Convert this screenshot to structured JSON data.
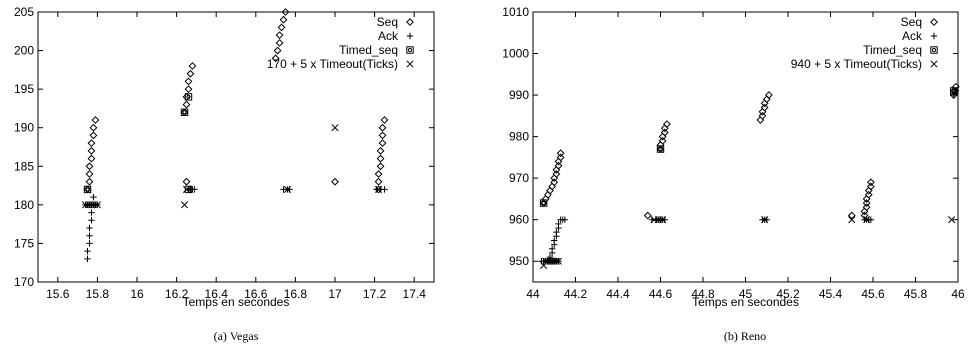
{
  "chart_data": [
    {
      "type": "scatter",
      "caption": "(a) Vegas",
      "xlabel": "Temps en secondes",
      "ylabel": "",
      "xlim": [
        15.5,
        17.5
      ],
      "ylim": [
        170,
        205
      ],
      "xticks": [
        "15.6",
        "15.8",
        "16",
        "16.2",
        "16.4",
        "16.6",
        "16.8",
        "17",
        "17.2",
        "17.4"
      ],
      "xtick_values": [
        15.6,
        15.8,
        16,
        16.2,
        16.4,
        16.6,
        16.8,
        17,
        17.2,
        17.4
      ],
      "yticks": [
        "170",
        "175",
        "180",
        "185",
        "190",
        "195",
        "200",
        "205"
      ],
      "ytick_values": [
        170,
        175,
        180,
        185,
        190,
        195,
        200,
        205
      ],
      "grid": false,
      "legend_position": "top-right",
      "series": [
        {
          "name": "Seq",
          "marker": "diamond",
          "points": [
            [
              15.75,
              182
            ],
            [
              15.76,
              183
            ],
            [
              15.76,
              184
            ],
            [
              15.76,
              185
            ],
            [
              15.77,
              186
            ],
            [
              15.77,
              187
            ],
            [
              15.77,
              188
            ],
            [
              15.78,
              189
            ],
            [
              15.78,
              190
            ],
            [
              15.79,
              191
            ],
            [
              16.24,
              192
            ],
            [
              16.25,
              193
            ],
            [
              16.25,
              194
            ],
            [
              16.26,
              195
            ],
            [
              16.26,
              196
            ],
            [
              16.27,
              197
            ],
            [
              16.28,
              198
            ],
            [
              16.25,
              183
            ],
            [
              16.7,
              199
            ],
            [
              16.71,
              200
            ],
            [
              16.72,
              201
            ],
            [
              16.72,
              202
            ],
            [
              16.73,
              203
            ],
            [
              16.74,
              204
            ],
            [
              16.75,
              205
            ],
            [
              17.0,
              183
            ],
            [
              17.22,
              182
            ],
            [
              17.22,
              183
            ],
            [
              17.22,
              184
            ],
            [
              17.23,
              185
            ],
            [
              17.23,
              186
            ],
            [
              17.23,
              187
            ],
            [
              17.24,
              188
            ],
            [
              17.24,
              189
            ],
            [
              17.24,
              190
            ],
            [
              17.25,
              191
            ]
          ]
        },
        {
          "name": "Ack",
          "marker": "plus",
          "points": [
            [
              15.75,
              173
            ],
            [
              15.75,
              174
            ],
            [
              15.76,
              175
            ],
            [
              15.76,
              176
            ],
            [
              15.76,
              177
            ],
            [
              15.77,
              178
            ],
            [
              15.77,
              179
            ],
            [
              15.77,
              180
            ],
            [
              15.78,
              181
            ],
            [
              15.74,
              180
            ],
            [
              15.75,
              180
            ],
            [
              15.76,
              180
            ],
            [
              15.77,
              180
            ],
            [
              15.78,
              180
            ],
            [
              15.79,
              180
            ],
            [
              15.8,
              180
            ],
            [
              16.26,
              182
            ],
            [
              16.27,
              182
            ],
            [
              16.28,
              182
            ],
            [
              16.29,
              182
            ],
            [
              16.74,
              182
            ],
            [
              16.76,
              182
            ],
            [
              16.77,
              182
            ],
            [
              17.21,
              182
            ],
            [
              17.23,
              182
            ],
            [
              17.25,
              182
            ]
          ]
        },
        {
          "name": "Timed_seq",
          "marker": "square",
          "points": [
            [
              15.75,
              182
            ],
            [
              16.24,
              192
            ],
            [
              16.26,
              194
            ],
            [
              16.26,
              182
            ]
          ]
        },
        {
          "name": "170 + 5 x Timeout(Ticks)",
          "marker": "cross",
          "points": [
            [
              15.74,
              180
            ],
            [
              15.76,
              180
            ],
            [
              15.78,
              180
            ],
            [
              15.8,
              180
            ],
            [
              16.24,
              180
            ],
            [
              16.25,
              182
            ],
            [
              16.76,
              182
            ],
            [
              17.0,
              190
            ],
            [
              17.22,
              182
            ]
          ]
        }
      ]
    },
    {
      "type": "scatter",
      "caption": "(b) Reno",
      "xlabel": "Temps en secondes",
      "ylabel": "",
      "xlim": [
        44,
        46
      ],
      "ylim": [
        945,
        1010
      ],
      "xticks": [
        "44",
        "44.2",
        "44.4",
        "44.6",
        "44.8",
        "45",
        "45.2",
        "45.4",
        "45.6",
        "45.8",
        "46"
      ],
      "xtick_values": [
        44,
        44.2,
        44.4,
        44.6,
        44.8,
        45,
        45.2,
        45.4,
        45.6,
        45.8,
        46
      ],
      "yticks": [
        "950",
        "960",
        "970",
        "980",
        "990",
        "1000",
        "1010"
      ],
      "ytick_values": [
        950,
        960,
        970,
        980,
        990,
        1000,
        1010
      ],
      "grid": false,
      "legend_position": "top-right",
      "series": [
        {
          "name": "Seq",
          "marker": "diamond",
          "points": [
            [
              44.05,
              964
            ],
            [
              44.06,
              965
            ],
            [
              44.07,
              966
            ],
            [
              44.08,
              967
            ],
            [
              44.09,
              968
            ],
            [
              44.1,
              969
            ],
            [
              44.1,
              970
            ],
            [
              44.11,
              971
            ],
            [
              44.11,
              972
            ],
            [
              44.12,
              973
            ],
            [
              44.12,
              974
            ],
            [
              44.13,
              975
            ],
            [
              44.13,
              976
            ],
            [
              44.54,
              961
            ],
            [
              44.6,
              977
            ],
            [
              44.6,
              978
            ],
            [
              44.61,
              979
            ],
            [
              44.61,
              980
            ],
            [
              44.62,
              981
            ],
            [
              44.62,
              982
            ],
            [
              44.63,
              983
            ],
            [
              45.07,
              984
            ],
            [
              45.08,
              985
            ],
            [
              45.08,
              986
            ],
            [
              45.09,
              987
            ],
            [
              45.09,
              988
            ],
            [
              45.1,
              989
            ],
            [
              45.11,
              990
            ],
            [
              45.5,
              961
            ],
            [
              45.56,
              961
            ],
            [
              45.56,
              962
            ],
            [
              45.57,
              963
            ],
            [
              45.57,
              964
            ],
            [
              45.57,
              965
            ],
            [
              45.58,
              966
            ],
            [
              45.58,
              967
            ],
            [
              45.59,
              968
            ],
            [
              45.59,
              969
            ],
            [
              45.98,
              990
            ],
            [
              45.98,
              991
            ],
            [
              45.99,
              992
            ]
          ]
        },
        {
          "name": "Ack",
          "marker": "plus",
          "points": [
            [
              44.04,
              950
            ],
            [
              44.05,
              950
            ],
            [
              44.06,
              950
            ],
            [
              44.07,
              950
            ],
            [
              44.08,
              950
            ],
            [
              44.09,
              950
            ],
            [
              44.1,
              950
            ],
            [
              44.11,
              950
            ],
            [
              44.12,
              950
            ],
            [
              44.08,
              951
            ],
            [
              44.09,
              952
            ],
            [
              44.09,
              953
            ],
            [
              44.1,
              954
            ],
            [
              44.1,
              955
            ],
            [
              44.11,
              956
            ],
            [
              44.11,
              957
            ],
            [
              44.12,
              958
            ],
            [
              44.12,
              959
            ],
            [
              44.13,
              960
            ],
            [
              44.14,
              960
            ],
            [
              44.15,
              960
            ],
            [
              44.56,
              960
            ],
            [
              44.58,
              960
            ],
            [
              44.59,
              960
            ],
            [
              44.6,
              960
            ],
            [
              44.61,
              960
            ],
            [
              44.62,
              960
            ],
            [
              45.08,
              960
            ],
            [
              45.09,
              960
            ],
            [
              45.1,
              960
            ],
            [
              45.56,
              960
            ],
            [
              45.57,
              960
            ],
            [
              45.58,
              960
            ],
            [
              45.59,
              960
            ],
            [
              45.98,
              990
            ],
            [
              45.99,
              991
            ]
          ]
        },
        {
          "name": "Timed_seq",
          "marker": "square",
          "points": [
            [
              44.05,
              964
            ],
            [
              44.6,
              977
            ],
            [
              45.98,
              991
            ]
          ]
        },
        {
          "name": "940 + 5 x Timeout(Ticks)",
          "marker": "cross",
          "points": [
            [
              44.05,
              949
            ],
            [
              44.06,
              950
            ],
            [
              44.07,
              950
            ],
            [
              44.08,
              950
            ],
            [
              44.09,
              950
            ],
            [
              44.1,
              950
            ],
            [
              44.11,
              950
            ],
            [
              44.12,
              950
            ],
            [
              44.57,
              960
            ],
            [
              44.59,
              960
            ],
            [
              44.61,
              960
            ],
            [
              45.09,
              960
            ],
            [
              45.5,
              960
            ],
            [
              45.57,
              960
            ],
            [
              45.97,
              960
            ]
          ]
        }
      ]
    }
  ]
}
